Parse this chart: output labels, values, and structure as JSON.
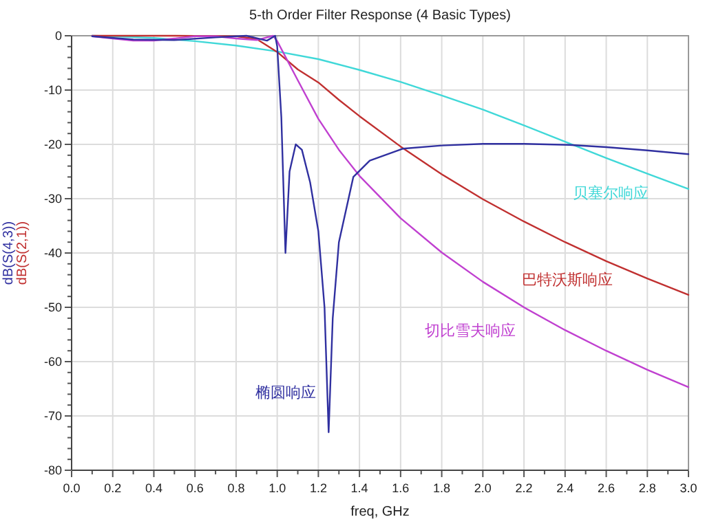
{
  "chart_data": {
    "type": "line",
    "title": "5-th Order Filter Response (4 Basic Types)",
    "xlabel": "freq, GHz",
    "ylabel": "dB(S(4,3))\ndB(S(2,1))",
    "xlim": [
      0,
      3
    ],
    "ylim": [
      -80,
      0
    ],
    "xticks": [
      {
        "value": 0,
        "label": "0.0"
      },
      {
        "value": 0.1,
        "label": null
      },
      {
        "value": 0.2,
        "label": "0.2"
      },
      {
        "value": 0.3,
        "label": null
      },
      {
        "value": 0.4,
        "label": "0.4"
      },
      {
        "value": 0.5,
        "label": null
      },
      {
        "value": 0.6,
        "label": "0.6"
      },
      {
        "value": 0.7,
        "label": null
      },
      {
        "value": 0.8,
        "label": "0.8"
      },
      {
        "value": 0.9,
        "label": null
      },
      {
        "value": 1.0,
        "label": "1.0"
      },
      {
        "value": 1.1,
        "label": null
      },
      {
        "value": 1.2,
        "label": "1.2"
      },
      {
        "value": 1.3,
        "label": null
      },
      {
        "value": 1.4,
        "label": "1.4"
      },
      {
        "value": 1.5,
        "label": null
      },
      {
        "value": 1.6,
        "label": "1.6"
      },
      {
        "value": 1.7,
        "label": null
      },
      {
        "value": 1.8,
        "label": "1.8"
      },
      {
        "value": 1.9,
        "label": null
      },
      {
        "value": 2.0,
        "label": "2.0"
      },
      {
        "value": 2.1,
        "label": null
      },
      {
        "value": 2.2,
        "label": "2.2"
      },
      {
        "value": 2.3,
        "label": null
      },
      {
        "value": 2.4,
        "label": "2.4"
      },
      {
        "value": 2.5,
        "label": null
      },
      {
        "value": 2.6,
        "label": "2.6"
      },
      {
        "value": 2.7,
        "label": null
      },
      {
        "value": 2.8,
        "label": "2.8"
      },
      {
        "value": 2.9,
        "label": null
      },
      {
        "value": 3.0,
        "label": "3.0"
      }
    ],
    "yticks": [
      -80,
      {
        "value": -78,
        "label": null
      },
      {
        "value": -76,
        "label": null
      },
      {
        "value": -74,
        "label": null
      },
      {
        "value": -72,
        "label": null
      },
      -70,
      {
        "value": -68,
        "label": null
      },
      {
        "value": -66,
        "label": null
      },
      {
        "value": -64,
        "label": null
      },
      {
        "value": -62,
        "label": null
      },
      -60,
      {
        "value": -58,
        "label": null
      },
      {
        "value": -56,
        "label": null
      },
      {
        "value": -54,
        "label": null
      },
      {
        "value": -52,
        "label": null
      },
      -50,
      {
        "value": -48,
        "label": null
      },
      {
        "value": -46,
        "label": null
      },
      {
        "value": -44,
        "label": null
      },
      {
        "value": -42,
        "label": null
      },
      -40,
      {
        "value": -38,
        "label": null
      },
      {
        "value": -36,
        "label": null
      },
      {
        "value": -34,
        "label": null
      },
      {
        "value": -32,
        "label": null
      },
      -30,
      {
        "value": -28,
        "label": null
      },
      {
        "value": -26,
        "label": null
      },
      {
        "value": -24,
        "label": null
      },
      {
        "value": -22,
        "label": null
      },
      -20,
      {
        "value": -18,
        "label": null
      },
      {
        "value": -16,
        "label": null
      },
      {
        "value": -14,
        "label": null
      },
      {
        "value": -12,
        "label": null
      },
      -10,
      {
        "value": -8,
        "label": null
      },
      {
        "value": -6,
        "label": null
      },
      {
        "value": -4,
        "label": null
      },
      {
        "value": -2,
        "label": null
      },
      0
    ],
    "grid": true,
    "series": [
      {
        "name": "贝塞尔响应",
        "color": "#40d8d8",
        "x": [
          0.1,
          0.2,
          0.4,
          0.6,
          0.8,
          1.0,
          1.2,
          1.4,
          1.6,
          1.8,
          2.0,
          2.2,
          2.4,
          2.6,
          2.8,
          3.0
        ],
        "values": [
          0,
          -0.1,
          -0.4,
          -1.0,
          -1.8,
          -2.9,
          -4.3,
          -6.3,
          -8.5,
          -11.0,
          -13.6,
          -16.5,
          -19.5,
          -22.5,
          -25.4,
          -28.2
        ]
      },
      {
        "name": "巴特沃斯响应",
        "color": "#c03030",
        "x": [
          0.1,
          0.5,
          0.8,
          0.9,
          1.0,
          1.1,
          1.2,
          1.3,
          1.4,
          1.6,
          1.8,
          2.0,
          2.2,
          2.4,
          2.6,
          2.8,
          3.0
        ],
        "values": [
          0,
          0,
          -0.1,
          -0.6,
          -3.0,
          -6.2,
          -8.6,
          -11.8,
          -14.8,
          -20.4,
          -25.5,
          -30.1,
          -34.2,
          -38.0,
          -41.5,
          -44.7,
          -47.7
        ]
      },
      {
        "name": "切比雪夫响应",
        "color": "#c040d0",
        "x": [
          0.1,
          0.2,
          0.3,
          0.4,
          0.5,
          0.6,
          0.7,
          0.8,
          0.9,
          0.98,
          1.0,
          1.1,
          1.2,
          1.3,
          1.4,
          1.6,
          1.8,
          2.0,
          2.2,
          2.4,
          2.6,
          2.8,
          3.0
        ],
        "values": [
          -0.1,
          -0.5,
          -0.9,
          -0.9,
          -0.5,
          -0.1,
          -0.1,
          -0.5,
          -0.8,
          0,
          -1.0,
          -8.2,
          -15.3,
          -21.0,
          -25.8,
          -33.6,
          -39.9,
          -45.3,
          -50.0,
          -54.2,
          -58.0,
          -61.5,
          -64.7
        ]
      },
      {
        "name": "椭圆响应",
        "color": "#3030a0",
        "x": [
          0.1,
          0.3,
          0.5,
          0.7,
          0.85,
          0.95,
          0.99,
          1.0,
          1.02,
          1.04,
          1.06,
          1.09,
          1.12,
          1.16,
          1.2,
          1.23,
          1.25,
          1.27,
          1.3,
          1.37,
          1.45,
          1.61,
          1.8,
          2.0,
          2.2,
          2.42,
          2.6,
          2.8,
          3.0
        ],
        "values": [
          -0.1,
          -0.7,
          -0.8,
          -0.3,
          0,
          -0.9,
          0,
          -2,
          -15,
          -40,
          -25,
          -20,
          -21,
          -27,
          -36,
          -50,
          -73,
          -52,
          -38,
          -26,
          -23,
          -20.8,
          -20.2,
          -19.9,
          -19.9,
          -20.1,
          -20.5,
          -21.1,
          -21.8
        ]
      }
    ]
  }
}
